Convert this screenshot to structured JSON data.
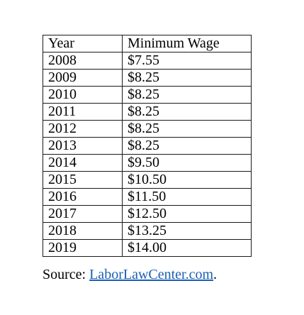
{
  "table": {
    "headers": [
      "Year",
      "Minimum Wage"
    ],
    "rows": [
      [
        "2008",
        "$7.55"
      ],
      [
        "2009",
        "$8.25"
      ],
      [
        "2010",
        "$8.25"
      ],
      [
        "2011",
        "$8.25"
      ],
      [
        "2012",
        "$8.25"
      ],
      [
        "2013",
        "$8.25"
      ],
      [
        "2014",
        "$9.50"
      ],
      [
        "2015",
        "$10.50"
      ],
      [
        "2016",
        "$11.50"
      ],
      [
        "2017",
        "$12.50"
      ],
      [
        "2018",
        "$13.25"
      ],
      [
        "2019",
        "$14.00"
      ]
    ]
  },
  "source": {
    "prefix": "Source: ",
    "link_text": "LaborLawCenter.com",
    "suffix": "."
  },
  "colors": {
    "link": "#1a5fb4",
    "border": "#1a1a1a",
    "text": "#000000"
  }
}
